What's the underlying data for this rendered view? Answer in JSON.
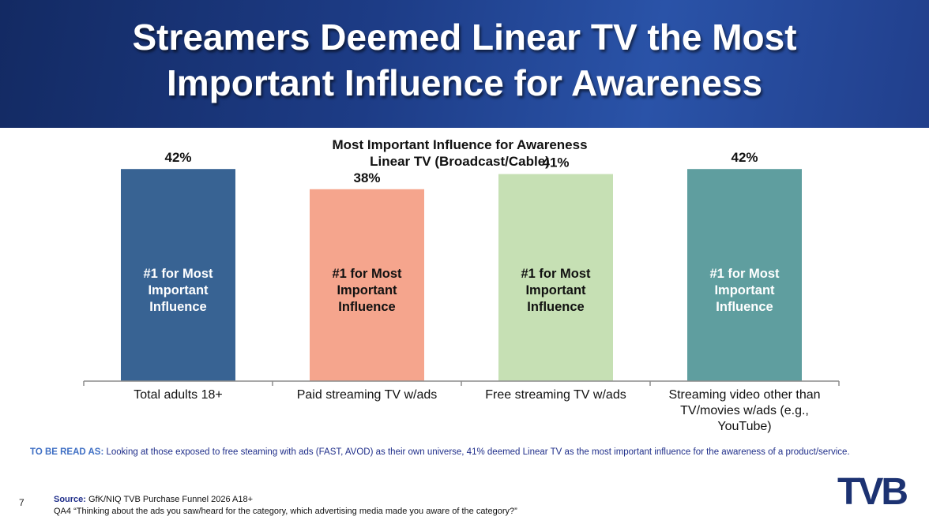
{
  "header": {
    "title_line1": "Streamers Deemed Linear TV the Most",
    "title_line2": "Important Influence for Awareness"
  },
  "chart_data": {
    "type": "bar",
    "title": "Most Important Influence for Awareness",
    "subtitle": "Linear TV (Broadcast/Cable)",
    "categories": [
      [
        "Total adults 18+"
      ],
      [
        "Paid streaming TV w/ads"
      ],
      [
        "Free streaming TV w/ads"
      ],
      [
        "Streaming video other than",
        "TV/movies w/ads (e.g.,",
        "YouTube)"
      ]
    ],
    "values": [
      42,
      38,
      41,
      42
    ],
    "data_labels": [
      "42%",
      "38%",
      "41%",
      "42%"
    ],
    "bar_text": [
      [
        "#1 for Most",
        "Important",
        "Influence"
      ],
      [
        "#1 for Most",
        "Important",
        "Influence"
      ],
      [
        "#1 for Most",
        "Important",
        "Influence"
      ],
      [
        "#1 for Most",
        "Important",
        "Influence"
      ]
    ],
    "colors": [
      "#386393",
      "#f5a58d",
      "#c6e0b4",
      "#5f9e9f"
    ],
    "bar_text_colors": [
      "#ffffff",
      "#111111",
      "#111111",
      "#ffffff"
    ],
    "ylim": [
      0,
      45
    ],
    "grid": false
  },
  "note": {
    "lead": "TO BE READ AS:",
    "text": "Looking at those exposed to free steaming with ads (FAST, AVOD) as their own universe, 41% deemed Linear TV as the most important influence for the awareness of a product/service."
  },
  "footer": {
    "page_number": "7",
    "source_label": "Source:",
    "source_text": "GfK/NIQ TVB Purchase Funnel 2026 A18+",
    "question": "QA4 “Thinking about the ads you saw/heard for the category, which advertising media made you aware of the category?”",
    "logo": "TVB"
  }
}
